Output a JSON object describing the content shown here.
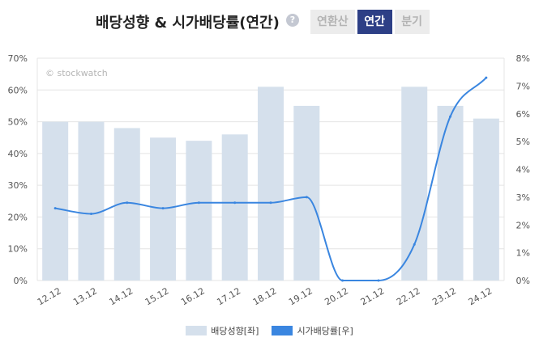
{
  "header": {
    "title": "배당성향 & 시가배당률(연간)",
    "help_glyph": "?",
    "tabs": [
      {
        "label": "연환산",
        "active": false
      },
      {
        "label": "연간",
        "active": true
      },
      {
        "label": "분기",
        "active": false
      }
    ]
  },
  "watermark": "© stockwatch",
  "colors": {
    "bar": "#d5e0ec",
    "line": "#3a86e0",
    "grid": "#e4e4e4",
    "tab_active": "#2d3f86"
  },
  "chart_data": {
    "type": "bar",
    "categories": [
      "12.12",
      "13.12",
      "14.12",
      "15.12",
      "16.12",
      "17.12",
      "18.12",
      "19.12",
      "20.12",
      "21.12",
      "22.12",
      "23.12",
      "24.12"
    ],
    "series": [
      {
        "name": "배당성향[좌]",
        "type": "bar",
        "axis": "left",
        "values": [
          50,
          50,
          48,
          45,
          44,
          46,
          61,
          55,
          null,
          null,
          61,
          55,
          51
        ]
      },
      {
        "name": "시가배당률[우]",
        "type": "line",
        "axis": "right",
        "values": [
          2.6,
          2.4,
          2.8,
          2.6,
          2.8,
          2.8,
          2.8,
          3.0,
          0,
          0,
          1.3,
          5.9,
          7.3
        ]
      }
    ],
    "y_left": {
      "min": 0,
      "max": 70,
      "step": 10,
      "ticks": [
        "0%",
        "10%",
        "20%",
        "30%",
        "40%",
        "50%",
        "60%",
        "70%"
      ]
    },
    "y_right": {
      "min": 0,
      "max": 8,
      "step": 1,
      "ticks": [
        "0%",
        "1%",
        "2%",
        "3%",
        "4%",
        "5%",
        "6%",
        "7%",
        "8%"
      ]
    },
    "grid": true,
    "legend_position": "bottom"
  }
}
